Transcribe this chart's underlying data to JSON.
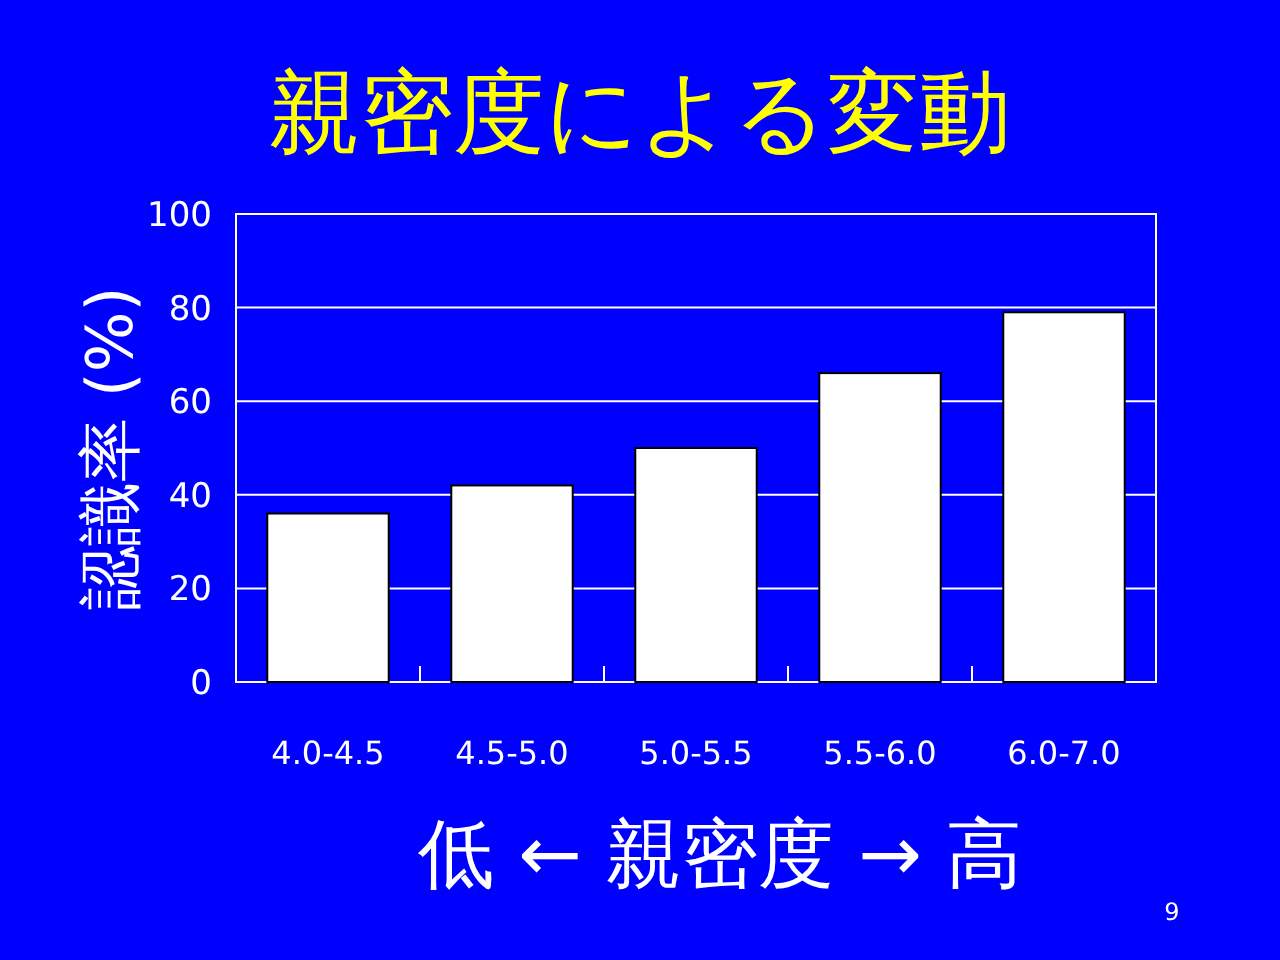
{
  "chart_data": {
    "type": "bar",
    "title": "親密度による変動",
    "xlabel": "低 ← 親密度 → 高",
    "ylabel": "認識率 (%)",
    "categories": [
      "4.0-4.5",
      "4.5-5.0",
      "5.0-5.5",
      "5.5-6.0",
      "6.0-7.0"
    ],
    "values": [
      36,
      42,
      50,
      66,
      79
    ],
    "color": "#ffffff",
    "ylim": [
      0,
      100
    ],
    "yticks": [
      0,
      20,
      40,
      60,
      80,
      100
    ],
    "grid": "y",
    "annotations": [
      "9"
    ]
  }
}
